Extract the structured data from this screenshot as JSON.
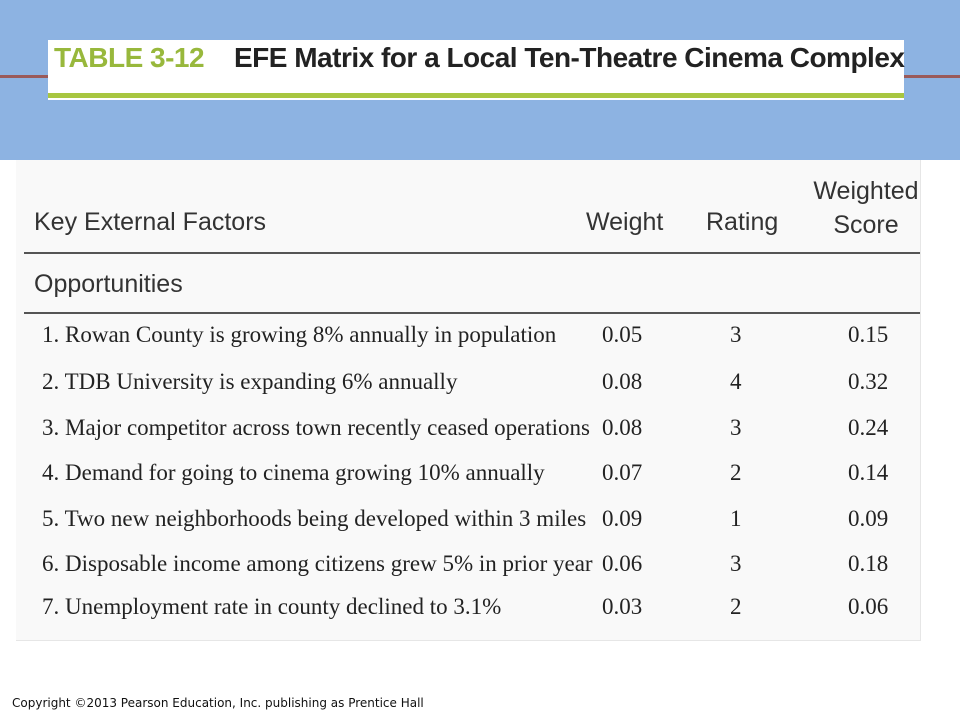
{
  "title": {
    "label": "TABLE 3-12",
    "text": "EFE Matrix for a Local Ten-Theatre Cinema Complex"
  },
  "colors": {
    "header_band": "#8db3e2",
    "label_green": "#98b83c",
    "rule_green": "#a8c640",
    "accent_line": "#9a5a5a"
  },
  "table": {
    "headers": {
      "factors": "Key External Factors",
      "weight": "Weight",
      "rating": "Rating",
      "ws_line1": "Weighted",
      "ws_line2": "Score"
    },
    "section": "Opportunities",
    "rows": [
      {
        "factor": "1. Rowan County is growing 8% annually in population",
        "weight": "0.05",
        "rating": "3",
        "score": "0.15"
      },
      {
        "factor": "2. TDB University is expanding 6% annually",
        "weight": "0.08",
        "rating": "4",
        "score": "0.32"
      },
      {
        "factor": "3. Major competitor across town recently ceased operations",
        "weight": "0.08",
        "rating": "3",
        "score": "0.24"
      },
      {
        "factor": "4. Demand for going to cinema growing 10% annually",
        "weight": "0.07",
        "rating": "2",
        "score": "0.14"
      },
      {
        "factor": "5. Two new neighborhoods being developed within 3 miles",
        "weight": "0.09",
        "rating": "1",
        "score": "0.09"
      },
      {
        "factor": "6. Disposable income among citizens grew 5% in prior year",
        "weight": "0.06",
        "rating": "3",
        "score": "0.18"
      },
      {
        "factor": "7. Unemployment rate in county declined to 3.1%",
        "weight": "0.03",
        "rating": "2",
        "score": "0.06"
      }
    ]
  },
  "footer": "Copyright ©2013 Pearson Education, Inc. publishing as Prentice Hall"
}
